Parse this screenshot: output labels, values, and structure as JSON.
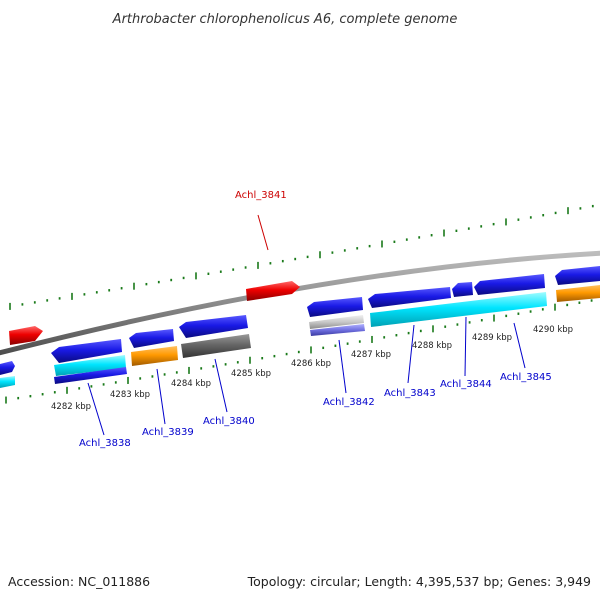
{
  "title": "Arthrobacter chlorophenolicus A6, complete genome",
  "footer": {
    "accession": "Accession: NC_011886",
    "summary": "Topology: circular; Length: 4,395,537 bp; Genes: 3,949"
  },
  "colors": {
    "backbone": "#808080",
    "forward_cds": "#1a1ae6",
    "reverse_cds": "#1a1ae6",
    "trna": "#ff9900",
    "rrna": "#00e5ff",
    "pseudo": "#666666",
    "other": "#c0c0c0",
    "highlight": "#ee0000",
    "tick_green": "#1a7a1a",
    "label_blue": "#0000cc",
    "label_red": "#cc0000"
  },
  "scale_labels": [
    "4282 kbp",
    "4283 kbp",
    "4284 kbp",
    "4285 kbp",
    "4286 kbp",
    "4287 kbp",
    "4288 kbp",
    "4289 kbp",
    "4290 kbp"
  ],
  "gene_labels": [
    {
      "name": "Achl_3838",
      "color": "label_blue"
    },
    {
      "name": "Achl_3839",
      "color": "label_blue"
    },
    {
      "name": "Achl_3840",
      "color": "label_blue"
    },
    {
      "name": "Achl_3841",
      "color": "label_red"
    },
    {
      "name": "Achl_3842",
      "color": "label_blue"
    },
    {
      "name": "Achl_3843",
      "color": "label_blue"
    },
    {
      "name": "Achl_3844",
      "color": "label_blue"
    },
    {
      "name": "Achl_3845",
      "color": "label_blue"
    }
  ]
}
